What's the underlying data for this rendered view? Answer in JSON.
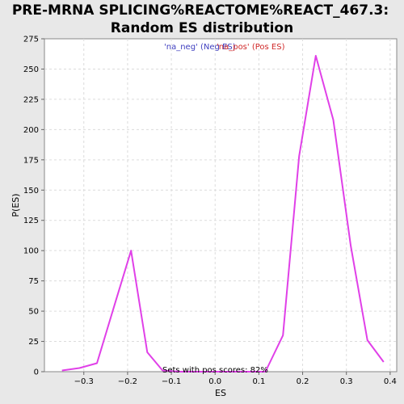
{
  "chart_data": {
    "type": "line",
    "title_line1": "PRE-MRNA SPLICING%REACTOME%REACT_467.3:",
    "title_line2": "Random ES distribution",
    "xlabel": "ES",
    "ylabel": "P(ES)",
    "xlim": [
      -0.39,
      0.415
    ],
    "ylim": [
      0,
      275
    ],
    "x_ticks": [
      -0.3,
      -0.2,
      -0.1,
      0.0,
      0.1,
      0.2,
      0.3,
      0.4
    ],
    "x_tick_labels": [
      "−0.3",
      "−0.2",
      "−0.1",
      "0.0",
      "0.1",
      "0.2",
      "0.3",
      "0.4"
    ],
    "y_ticks": [
      0,
      25,
      50,
      75,
      100,
      125,
      150,
      175,
      200,
      225,
      250,
      275
    ],
    "y_tick_labels": [
      "0",
      "25",
      "50",
      "75",
      "100",
      "125",
      "150",
      "175",
      "200",
      "225",
      "250",
      "275"
    ],
    "grid": true,
    "legend": {
      "placement": "top-center",
      "entries": [
        "'na_neg' (Neg ES)",
        "'na_pos' (Pos ES)"
      ],
      "colors": [
        "#4040c0",
        "#d02828"
      ]
    },
    "annotation": "Sets with pos scores: 82%",
    "series": [
      {
        "color": "#e040e8",
        "x": [
          -0.35,
          -0.31,
          -0.27,
          -0.23,
          -0.192,
          -0.155,
          -0.12,
          -0.08,
          -0.04,
          0.0,
          0.04,
          0.08,
          0.115,
          0.155,
          0.192,
          0.23,
          0.27,
          0.31,
          0.348,
          0.385
        ],
        "y": [
          1,
          3,
          7,
          55,
          100,
          16,
          1,
          0,
          0,
          0,
          0,
          0,
          0,
          30,
          178,
          261,
          208,
          104,
          26,
          8
        ]
      }
    ]
  }
}
